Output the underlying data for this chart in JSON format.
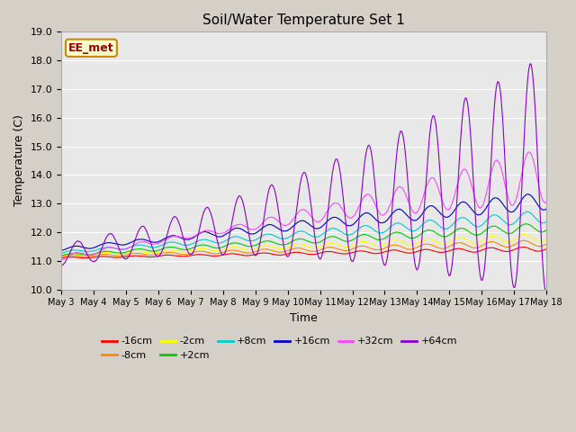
{
  "title": "Soil/Water Temperature Set 1",
  "xlabel": "Time",
  "ylabel": "Temperature (C)",
  "ylim": [
    10.0,
    19.0
  ],
  "xlim_days": 15,
  "fig_bg": "#d4d0c8",
  "plot_bg": "#e8e8e8",
  "annotation_text": "EE_met",
  "annotation_bg": "#ffffcc",
  "annotation_border": "#cc8800",
  "annotation_text_color": "#990000",
  "xtick_labels": [
    "May 3",
    "May 4",
    "May 5",
    "May 6",
    "May 7",
    "May 8",
    "May 9",
    "May 10",
    "May 11",
    "May 12",
    "May 13",
    "May 14",
    "May 15",
    "May 16",
    "May 17",
    "May 18"
  ],
  "ytick_vals": [
    10.0,
    11.0,
    12.0,
    13.0,
    14.0,
    15.0,
    16.0,
    17.0,
    18.0,
    19.0
  ],
  "series": [
    {
      "label": "-16cm",
      "color": "#ff0000"
    },
    {
      "label": "-8cm",
      "color": "#ff8800"
    },
    {
      "label": "-2cm",
      "color": "#ffff00"
    },
    {
      "label": "+2cm",
      "color": "#00cc00"
    },
    {
      "label": "+8cm",
      "color": "#00cccc"
    },
    {
      "label": "+16cm",
      "color": "#0000cc"
    },
    {
      "label": "+32cm",
      "color": "#ff44ff"
    },
    {
      "label": "+64cm",
      "color": "#8800cc"
    }
  ],
  "grid_color": "#ffffff",
  "linewidth": 0.8,
  "n_points": 1500
}
